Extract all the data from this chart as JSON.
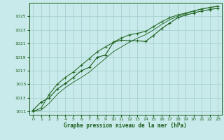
{
  "background_color": "#c8eaea",
  "grid_color": "#a8d0d0",
  "line_color_dark": "#1a5c1a",
  "line_color_mid": "#2a6e2a",
  "xlabel": "Graphe pression niveau de la mer (hPa)",
  "xlim": [
    -0.5,
    23.5
  ],
  "ylim": [
    1010.5,
    1027.0
  ],
  "yticks": [
    1011,
    1013,
    1015,
    1017,
    1019,
    1021,
    1023,
    1025
  ],
  "xticks": [
    0,
    1,
    2,
    3,
    4,
    5,
    6,
    7,
    8,
    9,
    10,
    11,
    12,
    13,
    14,
    15,
    16,
    17,
    18,
    19,
    20,
    21,
    22,
    23
  ],
  "series1_x": [
    0,
    1,
    2,
    3,
    4,
    5,
    6,
    7,
    8,
    9,
    10,
    11,
    12,
    13,
    14,
    15,
    16,
    17,
    18,
    19,
    20,
    21,
    22,
    23
  ],
  "series1_y": [
    1011.2,
    1012.4,
    1013.0,
    1014.3,
    1015.1,
    1016.0,
    1017.0,
    1017.5,
    1019.0,
    1019.3,
    1021.2,
    1021.5,
    1021.4,
    1021.4,
    1021.3,
    1022.2,
    1023.2,
    1024.0,
    1024.8,
    1025.2,
    1025.5,
    1025.8,
    1026.0,
    1026.2
  ],
  "series2_x": [
    0,
    1,
    2,
    3,
    4,
    5,
    6,
    7,
    8,
    9,
    10,
    11,
    12,
    13,
    14,
    15,
    16,
    17,
    18,
    19,
    20,
    21,
    22,
    23
  ],
  "series2_y": [
    1011.0,
    1011.5,
    1013.5,
    1015.0,
    1016.0,
    1016.8,
    1017.8,
    1018.8,
    1019.8,
    1020.5,
    1021.2,
    1021.8,
    1022.3,
    1022.5,
    1022.8,
    1023.5,
    1024.2,
    1024.8,
    1025.2,
    1025.5,
    1025.8,
    1026.1,
    1026.3,
    1026.5
  ],
  "series3_x": [
    0,
    1,
    2,
    3,
    4,
    5,
    6,
    7,
    8,
    9,
    10,
    11,
    12,
    13,
    14,
    15,
    16,
    17,
    18,
    19,
    20,
    21,
    22,
    23
  ],
  "series3_y": [
    1011.0,
    1011.2,
    1012.2,
    1013.5,
    1014.5,
    1015.3,
    1016.0,
    1016.8,
    1017.8,
    1018.8,
    1019.8,
    1020.5,
    1021.2,
    1021.8,
    1022.3,
    1023.0,
    1023.8,
    1024.5,
    1025.0,
    1025.4,
    1025.8,
    1026.1,
    1026.3,
    1026.5
  ]
}
